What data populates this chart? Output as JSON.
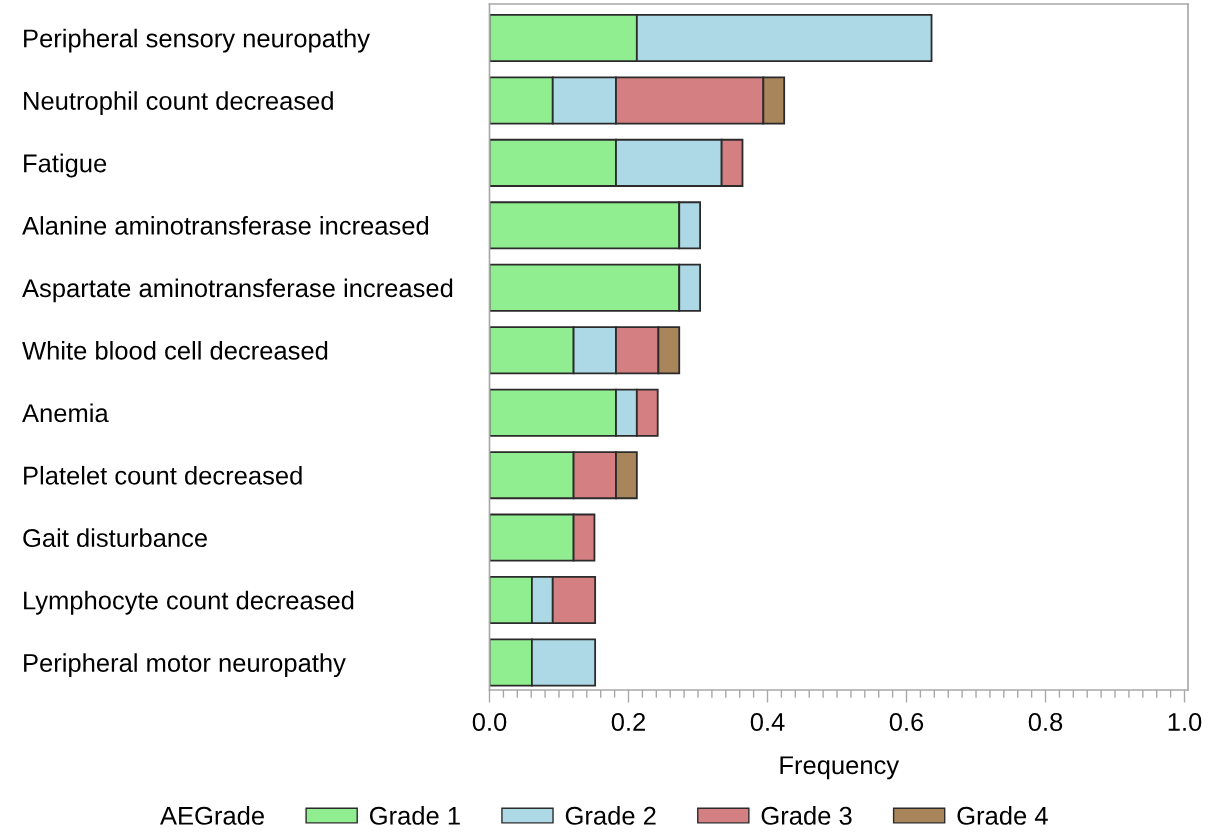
{
  "chart_data": {
    "type": "bar",
    "orientation": "horizontal",
    "stacked": true,
    "categories": [
      "Peripheral sensory neuropathy",
      "Neutrophil count decreased",
      "Fatigue",
      "Alanine aminotransferase increased",
      "Aspartate aminotransferase increased",
      "White blood cell decreased",
      "Anemia",
      "Platelet count decreased",
      "Gait disturbance",
      "Lymphocyte count decreased",
      "Peripheral motor neuropathy"
    ],
    "series": [
      {
        "name": "Grade 1",
        "color": "#90ee90",
        "values": [
          0.212,
          0.091,
          0.182,
          0.273,
          0.273,
          0.121,
          0.182,
          0.121,
          0.121,
          0.061,
          0.061
        ]
      },
      {
        "name": "Grade 2",
        "color": "#add8e6",
        "values": [
          0.424,
          0.091,
          0.152,
          0.03,
          0.03,
          0.061,
          0.03,
          null,
          null,
          0.03,
          0.091
        ]
      },
      {
        "name": "Grade 3",
        "color": "#d47f82",
        "values": [
          null,
          0.212,
          0.03,
          null,
          null,
          0.061,
          0.03,
          0.061,
          0.03,
          0.061,
          null
        ]
      },
      {
        "name": "Grade 4",
        "color": "#a8855a",
        "values": [
          null,
          0.03,
          null,
          null,
          null,
          0.03,
          null,
          0.03,
          null,
          null,
          null
        ]
      }
    ],
    "xlabel": "Frequency",
    "legend_title": "AEGrade",
    "legend": "bottom",
    "grid": false,
    "xlim": [
      0,
      1.005
    ],
    "xticks": [
      {
        "value": 0,
        "label": "0.0"
      },
      {
        "value": 0.02,
        "label": null
      },
      {
        "value": 0.04,
        "label": null
      },
      {
        "value": 0.06,
        "label": null
      },
      {
        "value": 0.08,
        "label": null
      },
      {
        "value": 0.1,
        "label": null
      },
      {
        "value": 0.12,
        "label": null
      },
      {
        "value": 0.14,
        "label": null
      },
      {
        "value": 0.16,
        "label": null
      },
      {
        "value": 0.18,
        "label": null
      },
      0.2,
      {
        "value": 0.22,
        "label": null
      },
      {
        "value": 0.24,
        "label": null
      },
      {
        "value": 0.26,
        "label": null
      },
      {
        "value": 0.28,
        "label": null
      },
      {
        "value": 0.3,
        "label": null
      },
      {
        "value": 0.32,
        "label": null
      },
      {
        "value": 0.34,
        "label": null
      },
      {
        "value": 0.36,
        "label": null
      },
      {
        "value": 0.38,
        "label": null
      },
      0.4,
      {
        "value": 0.42,
        "label": null
      },
      {
        "value": 0.44,
        "label": null
      },
      {
        "value": 0.46,
        "label": null
      },
      {
        "value": 0.48,
        "label": null
      },
      {
        "value": 0.5,
        "label": null
      },
      {
        "value": 0.52,
        "label": null
      },
      {
        "value": 0.54,
        "label": null
      },
      {
        "value": 0.56,
        "label": null
      },
      {
        "value": 0.58,
        "label": null
      },
      0.6,
      {
        "value": 0.62,
        "label": null
      },
      {
        "value": 0.64,
        "label": null
      },
      {
        "value": 0.66,
        "label": null
      },
      {
        "value": 0.68,
        "label": null
      },
      {
        "value": 0.7,
        "label": null
      },
      {
        "value": 0.72,
        "label": null
      },
      {
        "value": 0.74,
        "label": null
      },
      {
        "value": 0.76,
        "label": null
      },
      {
        "value": 0.78,
        "label": null
      },
      0.8,
      {
        "value": 0.82,
        "label": null
      },
      {
        "value": 0.84,
        "label": null
      },
      {
        "value": 0.86,
        "label": null
      },
      {
        "value": 0.88,
        "label": null
      },
      {
        "value": 0.9,
        "label": null
      },
      {
        "value": 0.92,
        "label": null
      },
      {
        "value": 0.94,
        "label": null
      },
      {
        "value": 0.96,
        "label": null
      },
      {
        "value": 0.98,
        "label": null
      },
      {
        "value": 1,
        "label": "1.0"
      }
    ]
  }
}
